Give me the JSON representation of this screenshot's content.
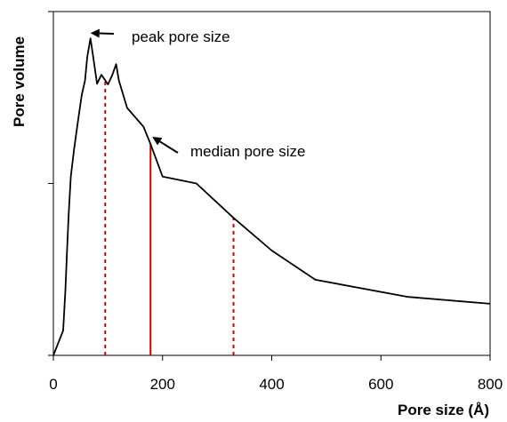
{
  "chart_data": {
    "type": "line",
    "title": "",
    "xlabel": "Pore size (Å)",
    "ylabel": "Pore volume",
    "xlim": [
      0,
      800
    ],
    "ylim": [
      0,
      1
    ],
    "xticks": [
      0,
      200,
      400,
      600,
      800
    ],
    "xtick_labels": [
      "0",
      "200",
      "400",
      "600",
      "800"
    ],
    "yticks": [
      0,
      0.5,
      1
    ],
    "grid": false,
    "legend": "none",
    "series": [
      {
        "color": "#000000",
        "x": [
          0,
          18,
          22,
          25,
          28,
          32,
          38,
          45,
          52,
          58,
          62,
          68,
          72,
          80,
          88,
          95,
          100,
          108,
          115,
          120,
          135,
          165,
          178,
          200,
          262,
          330,
          400,
          480,
          650,
          800
        ],
        "y": [
          0,
          0.072,
          0.188,
          0.3,
          0.41,
          0.52,
          0.6,
          0.68,
          0.757,
          0.8,
          0.868,
          0.922,
          0.878,
          0.79,
          0.816,
          0.8,
          0.788,
          0.816,
          0.847,
          0.8,
          0.72,
          0.665,
          0.615,
          0.52,
          0.5,
          0.4,
          0.305,
          0.22,
          0.17,
          0.15
        ]
      }
    ],
    "reference_lines": [
      {
        "x": 95,
        "y": 0.8,
        "style": "dashed",
        "color": "#cc0000"
      },
      {
        "x": 178,
        "y": 0.615,
        "style": "solid",
        "color": "#cc0000"
      },
      {
        "x": 330,
        "y": 0.4,
        "style": "dashed",
        "color": "#cc0000"
      }
    ],
    "annotations": [
      {
        "text": "peak pore size",
        "target_x": 68,
        "target_y": 0.922
      },
      {
        "text": "median pore size",
        "target_x": 178,
        "target_y": 0.615
      }
    ]
  }
}
